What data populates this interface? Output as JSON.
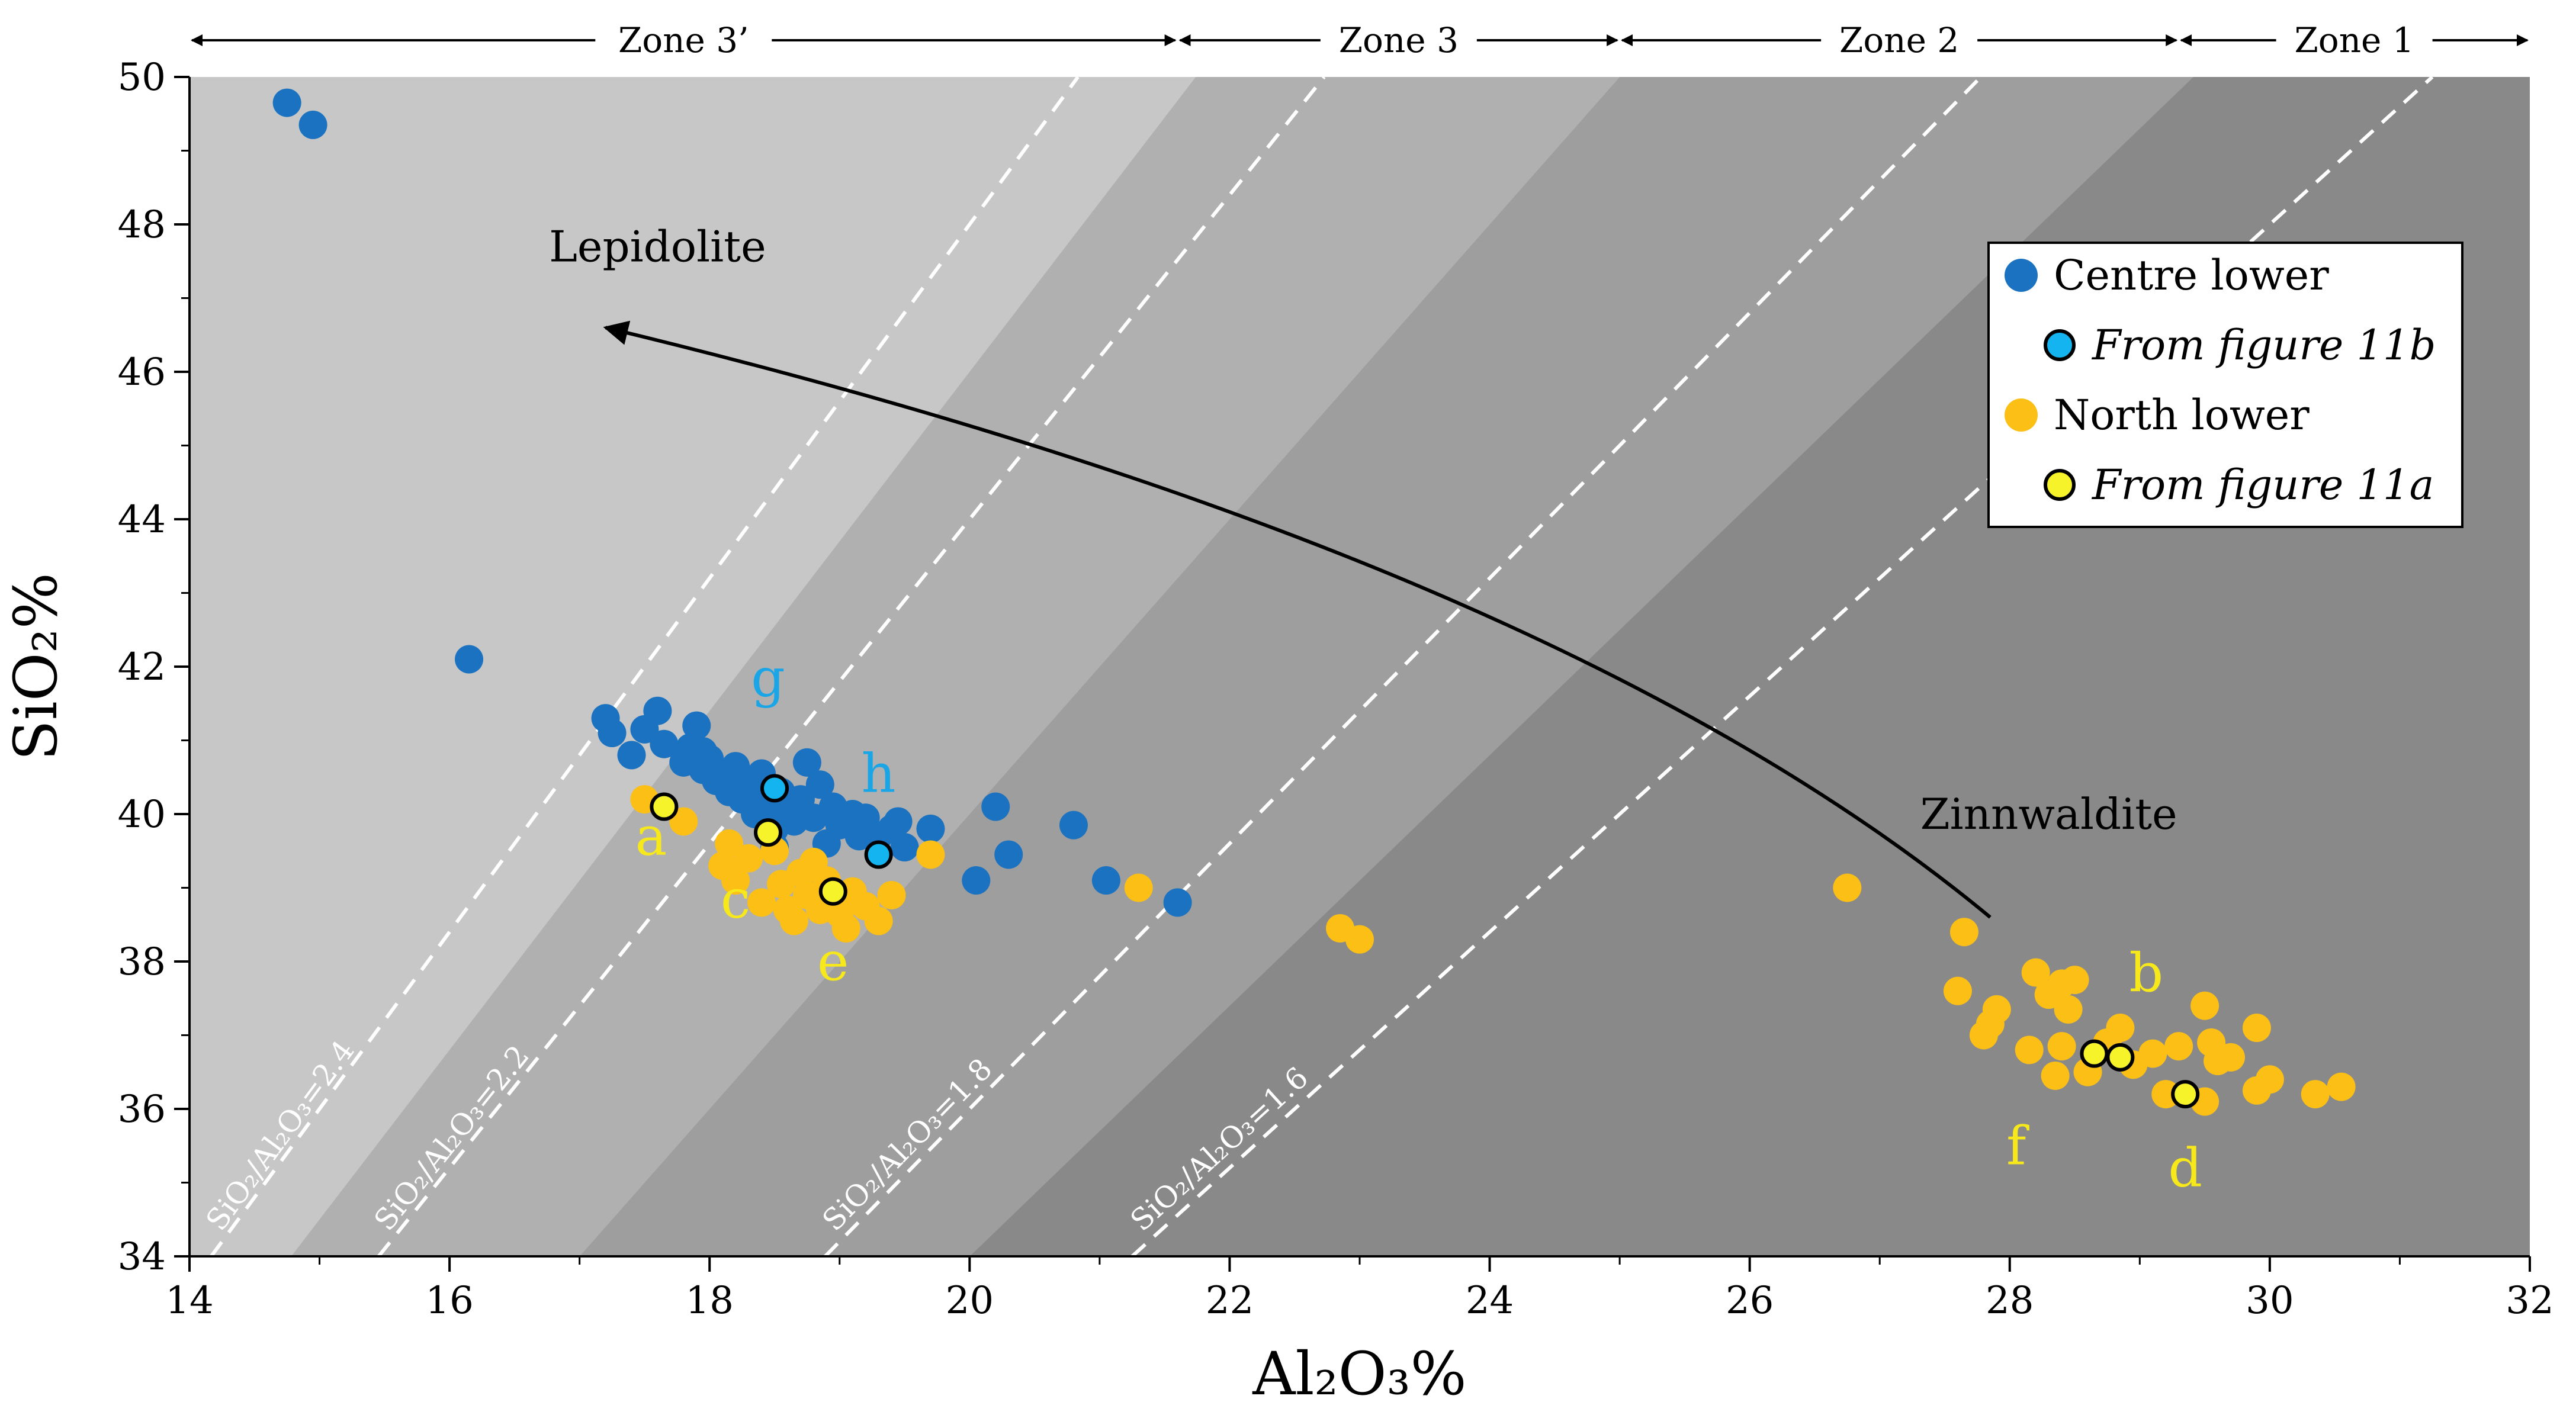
{
  "chart_data": {
    "type": "scatter",
    "title": "",
    "xlabel": "Al₂O₃%",
    "ylabel": "SiO₂%",
    "xlim": [
      14,
      32
    ],
    "ylim": [
      34,
      50
    ],
    "x_ticks": [
      14,
      16,
      18,
      20,
      22,
      24,
      26,
      28,
      30,
      32
    ],
    "y_ticks": [
      34,
      36,
      38,
      40,
      42,
      44,
      46,
      48,
      50
    ],
    "x_tick_labels": [
      "14",
      "16",
      "18",
      "20",
      "22",
      "24",
      "26",
      "28",
      "30",
      "32"
    ],
    "y_tick_labels": [
      "34",
      "36",
      "38",
      "40",
      "42",
      "44",
      "46",
      "48",
      "50"
    ],
    "zones": [
      {
        "label": "Zone 3’",
        "x_range": [
          14,
          21.6
        ],
        "boundary_ratio": 2.3,
        "color": "#c7c7c7"
      },
      {
        "label": "Zone 3",
        "x_range": [
          21.6,
          25
        ],
        "boundary_ratio": 2.0,
        "color": "#b0b0b0"
      },
      {
        "label": "Zone 2",
        "x_range": [
          25,
          29.3
        ],
        "boundary_ratio": 1.7,
        "color": "#9e9e9e"
      },
      {
        "label": "Zone 1",
        "x_range": [
          29.3,
          32
        ],
        "color": "#898989"
      }
    ],
    "base_fill": "#d0d0d0",
    "ratio_lines": [
      {
        "ratio": 2.4,
        "label": "SiO₂/Al₂O₃=2.4"
      },
      {
        "ratio": 2.2,
        "label": "SiO₂/Al₂O₃=2.2"
      },
      {
        "ratio": 1.8,
        "label": "SiO₂/Al₂O₃=1.8"
      },
      {
        "ratio": 1.6,
        "label": "SiO₂/Al₂O₃=1.6"
      }
    ],
    "series": [
      {
        "name": "Centre lower",
        "color": "#1a72c0",
        "points": [
          [
            14.75,
            49.65
          ],
          [
            14.95,
            49.35
          ],
          [
            16.15,
            42.1
          ],
          [
            17.2,
            41.3
          ],
          [
            17.25,
            41.1
          ],
          [
            17.4,
            40.8
          ],
          [
            17.5,
            41.15
          ],
          [
            17.6,
            41.4
          ],
          [
            17.65,
            40.95
          ],
          [
            17.8,
            40.7
          ],
          [
            17.85,
            40.9
          ],
          [
            17.9,
            41.2
          ],
          [
            17.95,
            40.6
          ],
          [
            18.0,
            40.75
          ],
          [
            18.05,
            40.45
          ],
          [
            18.1,
            40.55
          ],
          [
            18.15,
            40.3
          ],
          [
            18.2,
            40.65
          ],
          [
            18.25,
            40.2
          ],
          [
            18.3,
            40.4
          ],
          [
            18.35,
            40.0
          ],
          [
            18.4,
            40.55
          ],
          [
            18.45,
            40.15
          ],
          [
            18.5,
            39.8
          ],
          [
            18.55,
            40.3
          ],
          [
            18.6,
            40.05
          ],
          [
            18.65,
            39.9
          ],
          [
            18.7,
            40.2
          ],
          [
            18.75,
            40.7
          ],
          [
            18.8,
            39.95
          ],
          [
            18.85,
            40.4
          ],
          [
            18.9,
            39.6
          ],
          [
            18.95,
            40.1
          ],
          [
            19.0,
            39.85
          ],
          [
            19.1,
            40.0
          ],
          [
            19.15,
            39.7
          ],
          [
            19.2,
            39.95
          ],
          [
            19.3,
            39.7
          ],
          [
            19.4,
            39.8
          ],
          [
            19.5,
            39.55
          ],
          [
            19.7,
            39.8
          ],
          [
            19.45,
            39.9
          ],
          [
            18.5,
            39.55
          ],
          [
            17.95,
            40.85
          ],
          [
            20.05,
            39.1
          ],
          [
            20.2,
            40.1
          ],
          [
            20.3,
            39.45
          ],
          [
            20.8,
            39.85
          ],
          [
            21.05,
            39.1
          ],
          [
            21.6,
            38.8
          ]
        ]
      },
      {
        "name": "North lower",
        "color": "#fbbf16",
        "points": [
          [
            17.5,
            40.2
          ],
          [
            17.8,
            39.9
          ],
          [
            18.1,
            39.3
          ],
          [
            18.15,
            39.6
          ],
          [
            18.2,
            39.1
          ],
          [
            18.3,
            39.4
          ],
          [
            18.4,
            38.8
          ],
          [
            18.5,
            39.5
          ],
          [
            18.55,
            39.05
          ],
          [
            18.6,
            38.7
          ],
          [
            18.65,
            38.55
          ],
          [
            18.7,
            39.2
          ],
          [
            18.75,
            38.9
          ],
          [
            18.8,
            39.35
          ],
          [
            18.85,
            38.7
          ],
          [
            18.9,
            39.1
          ],
          [
            19.0,
            38.65
          ],
          [
            19.05,
            38.45
          ],
          [
            19.1,
            38.95
          ],
          [
            19.2,
            38.75
          ],
          [
            19.3,
            38.55
          ],
          [
            19.4,
            38.9
          ],
          [
            19.7,
            39.45
          ],
          [
            21.3,
            39.0
          ],
          [
            22.85,
            38.45
          ],
          [
            23.0,
            38.3
          ],
          [
            26.75,
            39.0
          ],
          [
            27.65,
            38.4
          ],
          [
            27.6,
            37.6
          ],
          [
            27.8,
            37.0
          ],
          [
            27.85,
            37.15
          ],
          [
            27.9,
            37.35
          ],
          [
            28.2,
            37.85
          ],
          [
            28.3,
            37.55
          ],
          [
            28.4,
            37.7
          ],
          [
            28.45,
            37.35
          ],
          [
            28.5,
            37.75
          ],
          [
            28.4,
            36.85
          ],
          [
            28.35,
            36.45
          ],
          [
            28.6,
            36.5
          ],
          [
            28.75,
            36.9
          ],
          [
            28.85,
            37.1
          ],
          [
            28.95,
            36.6
          ],
          [
            29.1,
            36.75
          ],
          [
            29.2,
            36.2
          ],
          [
            29.3,
            36.85
          ],
          [
            29.5,
            37.4
          ],
          [
            29.55,
            36.9
          ],
          [
            29.6,
            36.65
          ],
          [
            29.5,
            36.1
          ],
          [
            29.9,
            37.1
          ],
          [
            29.9,
            36.25
          ],
          [
            30.0,
            36.4
          ],
          [
            30.35,
            36.2
          ],
          [
            30.55,
            36.3
          ],
          [
            28.15,
            36.8
          ],
          [
            29.7,
            36.7
          ]
        ]
      }
    ],
    "highlighted": [
      {
        "series": "Centre lower",
        "x": 18.5,
        "y": 40.35,
        "label": "g",
        "label_x": 18.45,
        "label_y": 41.6
      },
      {
        "series": "Centre lower",
        "x": 19.3,
        "y": 39.45,
        "label": "h",
        "label_x": 19.3,
        "label_y": 40.3
      },
      {
        "series": "North lower",
        "x": 17.65,
        "y": 40.1,
        "label": "a",
        "label_x": 17.55,
        "label_y": 39.45
      },
      {
        "series": "North lower",
        "x": 18.45,
        "y": 39.75,
        "label": "c",
        "label_x": 18.2,
        "label_y": 38.6
      },
      {
        "series": "North lower",
        "x": 18.95,
        "y": 38.95,
        "label": "e",
        "label_x": 18.95,
        "label_y": 37.75
      },
      {
        "series": "North lower",
        "x": 28.65,
        "y": 36.75,
        "label": "b",
        "label_x": 29.05,
        "label_y": 37.6
      },
      {
        "series": "North lower",
        "x": 28.85,
        "y": 36.7,
        "label": "f",
        "label_x": 28.05,
        "label_y": 35.25
      },
      {
        "series": "North lower",
        "x": 29.35,
        "y": 36.2,
        "label": "d",
        "label_x": 29.35,
        "label_y": 34.95
      }
    ],
    "highlight_fills": {
      "Centre lower": "#14b4f0",
      "North lower": "#f7f32a"
    },
    "label_colors": {
      "Centre lower": "#1aa6e6",
      "North lower": "#f7e81c"
    },
    "annotations": [
      {
        "text": "Lepidolite",
        "x": 17.6,
        "y": 47.5
      },
      {
        "text": "Zinnwaldite",
        "x": 28.3,
        "y": 39.8
      }
    ],
    "trend_arrow": {
      "from": [
        27.85,
        38.6
      ],
      "via": [
        24.5,
        43.5
      ],
      "to": [
        17.2,
        46.6
      ]
    },
    "legend": {
      "position": "top-right",
      "entries": [
        {
          "label": "Centre lower",
          "italic": false,
          "fill": "#1a72c0",
          "outline": false
        },
        {
          "label": "From figure 11b",
          "italic": true,
          "fill": "#14b4f0",
          "outline": true
        },
        {
          "label": "North lower",
          "italic": false,
          "fill": "#fbbf16",
          "outline": false
        },
        {
          "label": "From figure 11a",
          "italic": true,
          "fill": "#f7f32a",
          "outline": true
        }
      ]
    }
  }
}
